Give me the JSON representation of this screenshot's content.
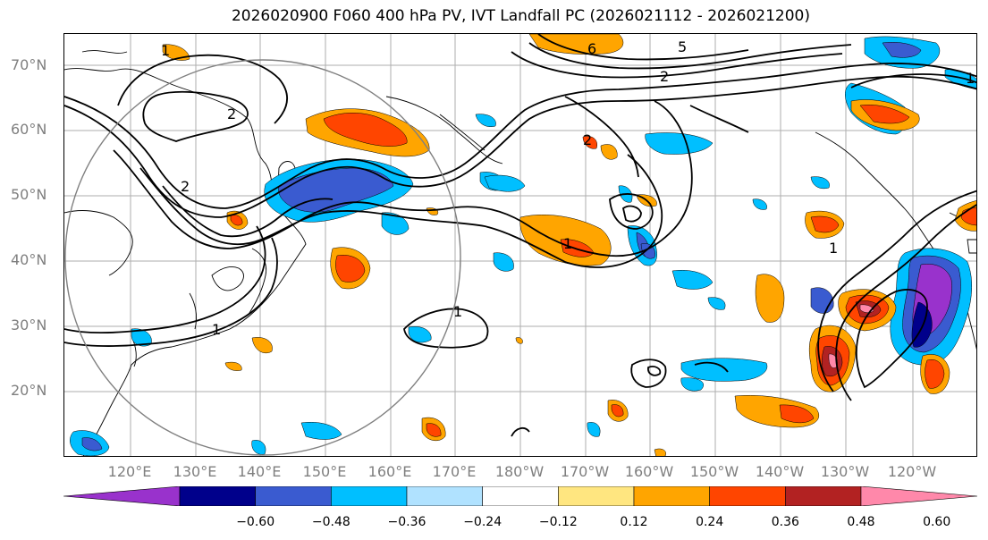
{
  "title": "2026020900 F060 400 hPa PV, IVT Landfall PC (2026021112 - 2026021200)",
  "lat_labels": [
    "70°N",
    "60°N",
    "50°N",
    "40°N",
    "30°N",
    "20°N"
  ],
  "lon_labels": [
    "120°E",
    "130°E",
    "140°E",
    "150°E",
    "160°E",
    "170°E",
    "180°W",
    "170°W",
    "160°W",
    "150°W",
    "140°W",
    "130°W",
    "120°W"
  ],
  "contour_labels": [
    "1",
    "2",
    "6",
    "5",
    "2",
    "2",
    "2",
    "1",
    "1",
    "1",
    "1",
    "1"
  ],
  "colorbar": {
    "colors": [
      "#9932cc",
      "#00008b",
      "#3a5bd0",
      "#00bfff",
      "#b0e2ff",
      "#ffffff",
      "#ffe680",
      "#ffa500",
      "#ff4500",
      "#b22222",
      "#ff88aa"
    ],
    "tick_labels": [
      "−0.60",
      "−0.48",
      "−0.36",
      "−0.24",
      "−0.12",
      "0.12",
      "0.24",
      "0.36",
      "0.48",
      "0.60"
    ]
  }
}
